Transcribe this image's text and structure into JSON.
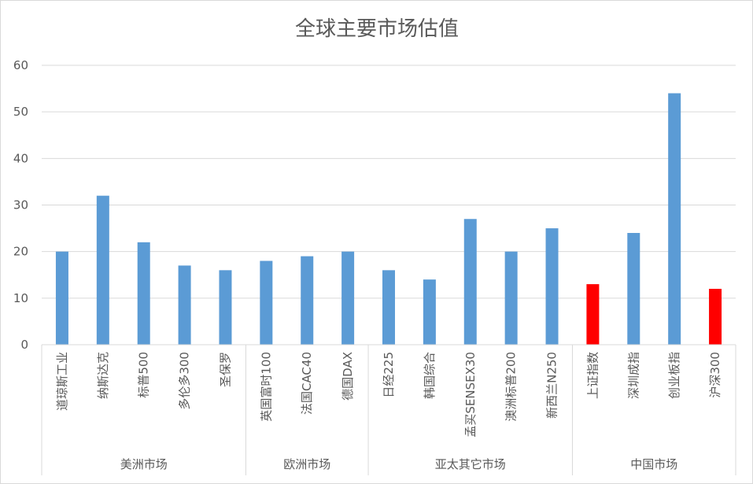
{
  "chart_data": {
    "type": "bar",
    "title": "全球主要市场估值",
    "ylim": [
      0,
      60
    ],
    "yticks": [
      0,
      10,
      20,
      30,
      40,
      50,
      60
    ],
    "grid": true,
    "legend": "none",
    "categories": [
      "道琼斯工业",
      "纳斯达克",
      "标普500",
      "多伦多300",
      "圣保罗",
      "英国富时100",
      "法国CAC40",
      "德国DAX",
      "日经225",
      "韩国综合",
      "孟买SENSEX30",
      "澳洲标普200",
      "新西兰N250",
      "上证指数",
      "深圳成指",
      "创业板指",
      "沪深300"
    ],
    "values": [
      20,
      32,
      22,
      17,
      16,
      18,
      19,
      20,
      16,
      14,
      27,
      20,
      25,
      13,
      24,
      54,
      12
    ],
    "bar_colors": [
      "#5b9bd5",
      "#5b9bd5",
      "#5b9bd5",
      "#5b9bd5",
      "#5b9bd5",
      "#5b9bd5",
      "#5b9bd5",
      "#5b9bd5",
      "#5b9bd5",
      "#5b9bd5",
      "#5b9bd5",
      "#5b9bd5",
      "#5b9bd5",
      "#ff0000",
      "#5b9bd5",
      "#5b9bd5",
      "#ff0000"
    ],
    "groups": [
      {
        "label": "美洲市场",
        "count": 5
      },
      {
        "label": "欧洲市场",
        "count": 3
      },
      {
        "label": "亚太其它市场",
        "count": 5
      },
      {
        "label": "中国市场",
        "count": 4
      }
    ]
  },
  "colors": {
    "default_bar": "#5b9bd5",
    "highlight_bar": "#ff0000",
    "gridline": "#d9d9d9",
    "text": "#595959"
  }
}
